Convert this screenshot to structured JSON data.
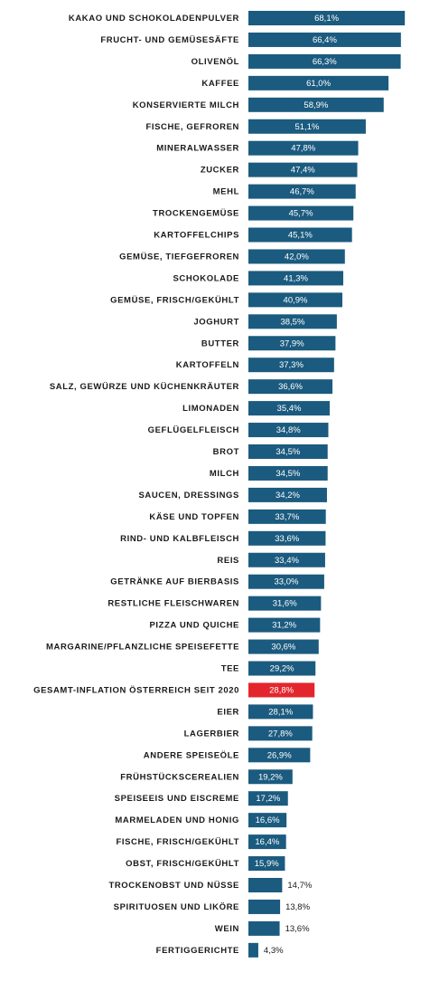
{
  "chart_data": {
    "type": "bar",
    "orientation": "horizontal",
    "categories": [
      "KAKAO UND SCHOKOLADENPULVER",
      "FRUCHT- UND GEMÜSESÄFTE",
      "OLIVENÖL",
      "KAFFEE",
      "KONSERVIERTE MILCH",
      "FISCHE, GEFROREN",
      "MINERALWASSER",
      "ZUCKER",
      "MEHL",
      "TROCKENGEMÜSE",
      "KARTOFFELCHIPS",
      "GEMÜSE, TIEFGEFROREN",
      "SCHOKOLADE",
      "GEMÜSE, FRISCH/GEKÜHLT",
      "JOGHURT",
      "BUTTER",
      "KARTOFFELN",
      "SALZ, GEWÜRZE UND KÜCHENKRÄUTER",
      "LIMONADEN",
      "GEFLÜGELFLEISCH",
      "BROT",
      "MILCH",
      "SAUCEN, DRESSINGS",
      "KÄSE UND TOPFEN",
      "RIND- UND KALBFLEISCH",
      "REIS",
      "GETRÄNKE AUF BIERBASIS",
      "RESTLICHE FLEISCHWAREN",
      "PIZZA UND QUICHE",
      "MARGARINE/PFLANZLICHE SPEISEFETTE",
      "TEE",
      "GESAMT-INFLATION ÖSTERREICH SEIT 2020",
      "EIER",
      "LAGERBIER",
      "ANDERE SPEISEÖLE",
      "FRÜHSTÜCKSCEREALIEN",
      "SPEISEEIS UND EISCREME",
      "MARMELADEN UND HONIG",
      "FISCHE, FRISCH/GEKÜHLT",
      "OBST, FRISCH/GEKÜHLT",
      "TROCKENOBST UND NÜSSE",
      "SPIRITUOSEN UND LIKÖRE",
      "WEIN",
      "FERTIGGERICHTE"
    ],
    "values": [
      68.1,
      66.4,
      66.3,
      61.0,
      58.9,
      51.1,
      47.8,
      47.4,
      46.7,
      45.7,
      45.1,
      42.0,
      41.3,
      40.9,
      38.5,
      37.9,
      37.3,
      36.6,
      35.4,
      34.8,
      34.5,
      34.5,
      34.2,
      33.7,
      33.6,
      33.4,
      33.0,
      31.6,
      31.2,
      30.6,
      29.2,
      28.8,
      28.1,
      27.8,
      26.9,
      19.2,
      17.2,
      16.6,
      16.4,
      15.9,
      14.7,
      13.8,
      13.6,
      4.3
    ],
    "value_labels": [
      "68,1%",
      "66,4%",
      "66,3%",
      "61,0%",
      "58,9%",
      "51,1%",
      "47,8%",
      "47,4%",
      "46,7%",
      "45,7%",
      "45,1%",
      "42,0%",
      "41,3%",
      "40,9%",
      "38,5%",
      "37,9%",
      "37,3%",
      "36,6%",
      "35,4%",
      "34,8%",
      "34,5%",
      "34,5%",
      "34,2%",
      "33,7%",
      "33,6%",
      "33,4%",
      "33,0%",
      "31,6%",
      "31,2%",
      "30,6%",
      "29,2%",
      "28,8%",
      "28,1%",
      "27,8%",
      "26,9%",
      "19,2%",
      "17,2%",
      "16,6%",
      "16,4%",
      "15,9%",
      "14,7%",
      "13,8%",
      "13,6%",
      "4,3%"
    ],
    "colors": [
      "#1b5b7f",
      "#1b5b7f",
      "#1b5b7f",
      "#1b5b7f",
      "#1b5b7f",
      "#1b5b7f",
      "#1b5b7f",
      "#1b5b7f",
      "#1b5b7f",
      "#1b5b7f",
      "#1b5b7f",
      "#1b5b7f",
      "#1b5b7f",
      "#1b5b7f",
      "#1b5b7f",
      "#1b5b7f",
      "#1b5b7f",
      "#1b5b7f",
      "#1b5b7f",
      "#1b5b7f",
      "#1b5b7f",
      "#1b5b7f",
      "#1b5b7f",
      "#1b5b7f",
      "#1b5b7f",
      "#1b5b7f",
      "#1b5b7f",
      "#1b5b7f",
      "#1b5b7f",
      "#1b5b7f",
      "#1b5b7f",
      "#e3262d",
      "#1b5b7f",
      "#1b5b7f",
      "#1b5b7f",
      "#1b5b7f",
      "#1b5b7f",
      "#1b5b7f",
      "#1b5b7f",
      "#1b5b7f",
      "#1b5b7f",
      "#1b5b7f",
      "#1b5b7f",
      "#1b5b7f"
    ],
    "xlim": [
      0,
      70
    ]
  }
}
